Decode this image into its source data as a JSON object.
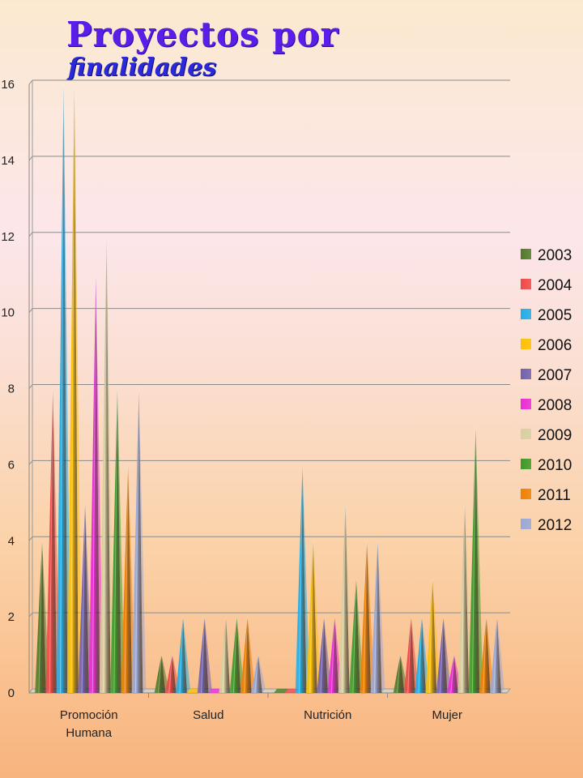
{
  "chart_data": {
    "type": "bar",
    "title": "Proyectos por",
    "subtitle": "finalidades",
    "categories": [
      "Promoción Humana",
      "Salud",
      "Nutrición",
      "Mujer"
    ],
    "ylim": [
      0,
      16
    ],
    "yticks": [
      0,
      2,
      4,
      6,
      8,
      10,
      12,
      14,
      16
    ],
    "grid": true,
    "legend_position": "right",
    "series": [
      {
        "name": "2003",
        "color": "#4f7a28",
        "values": [
          4,
          1,
          0,
          1
        ]
      },
      {
        "name": "2004",
        "color": "#f04848",
        "values": [
          8,
          1,
          0,
          2
        ]
      },
      {
        "name": "2005",
        "color": "#1eaee8",
        "values": [
          16,
          2,
          6,
          2
        ]
      },
      {
        "name": "2006",
        "color": "#ffc000",
        "values": [
          16,
          0,
          4,
          3
        ]
      },
      {
        "name": "2007",
        "color": "#7060b0",
        "values": [
          5,
          2,
          2,
          2
        ]
      },
      {
        "name": "2008",
        "color": "#ea2ad8",
        "values": [
          11,
          0,
          2,
          1
        ]
      },
      {
        "name": "2009",
        "color": "#d8d0a0",
        "values": [
          12,
          2,
          5,
          5
        ]
      },
      {
        "name": "2010",
        "color": "#3c9a28",
        "values": [
          8,
          2,
          3,
          7
        ]
      },
      {
        "name": "2011",
        "color": "#f08000",
        "values": [
          6,
          2,
          4,
          2
        ]
      },
      {
        "name": "2012",
        "color": "#9aa8d8",
        "values": [
          8,
          1,
          4,
          2
        ]
      }
    ]
  }
}
